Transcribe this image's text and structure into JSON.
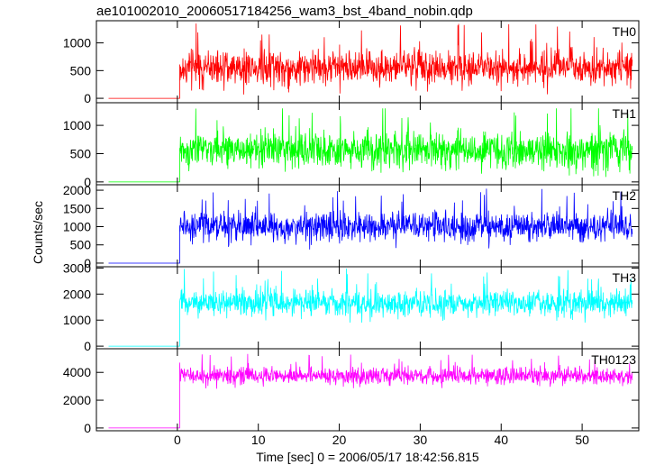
{
  "chart_data": {
    "type": "line",
    "title": "ae101002010_20060517184256_wam3_bst_4band_nobin.qdp",
    "xlabel": "Time [sec] 0 = 2006/05/17 18:42:56.815",
    "ylabel": "Counts/sec",
    "xlim": [
      -10,
      57
    ],
    "xticks": [
      0,
      10,
      20,
      30,
      40,
      50
    ],
    "grid": false,
    "panels": [
      {
        "name": "TH0",
        "color": "#ff0000",
        "ylim": [
          -80,
          1400
        ],
        "yticks": [
          0,
          500,
          1000
        ],
        "pre_level": 0,
        "start_x": 0.3,
        "end_x": 56.2,
        "mean": 560,
        "spread": 260,
        "max": 1350,
        "min": 0
      },
      {
        "name": "TH1",
        "color": "#00ff00",
        "ylim": [
          -50,
          1400
        ],
        "yticks": [
          0,
          500,
          1000
        ],
        "pre_level": 0,
        "start_x": 0.3,
        "end_x": 56.2,
        "mean": 560,
        "spread": 260,
        "max": 1300,
        "min": 0
      },
      {
        "name": "TH2",
        "color": "#0000ff",
        "ylim": [
          -100,
          2150
        ],
        "yticks": [
          0,
          500,
          1000,
          1500,
          2000
        ],
        "pre_level": 0,
        "start_x": 0.3,
        "end_x": 56.2,
        "mean": 1000,
        "spread": 330,
        "max": 2100,
        "min": 200
      },
      {
        "name": "TH3",
        "color": "#00ffff",
        "ylim": [
          -100,
          3050
        ],
        "yticks": [
          0,
          1000,
          2000,
          3000
        ],
        "pre_level": 0,
        "start_x": 0.3,
        "end_x": 56.2,
        "mean": 1650,
        "spread": 420,
        "max": 3000,
        "min": 600
      },
      {
        "name": "TH0123",
        "color": "#ff00ff",
        "ylim": [
          -200,
          5700
        ],
        "yticks": [
          0,
          2000,
          4000
        ],
        "pre_level": 0,
        "start_x": 0.3,
        "end_x": 56.2,
        "mean": 3750,
        "spread": 500,
        "max": 5500,
        "min": 2100
      }
    ]
  }
}
